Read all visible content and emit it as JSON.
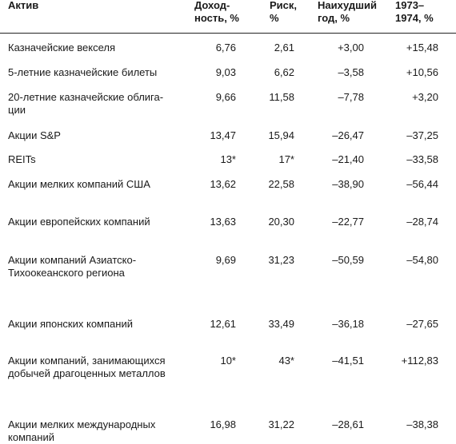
{
  "headers": {
    "asset": "Актив",
    "return": [
      "Доход-",
      "ность, %"
    ],
    "risk": [
      "Риск,",
      "%"
    ],
    "worst": [
      "Наихудший",
      "год, %"
    ],
    "period": [
      "1973–",
      "1974, %"
    ]
  },
  "rows": [
    {
      "name": [
        "Казначейские векселя"
      ],
      "ret": "6,76",
      "risk": "2,61",
      "worst": "+3,00",
      "p7374": "+15,48"
    },
    {
      "name": [
        "5-летние казначейские билеты"
      ],
      "ret": "9,03",
      "risk": "6,62",
      "worst": "–3,58",
      "p7374": "+10,56"
    },
    {
      "name": [
        "20-летние казначейские облига-",
        "ции"
      ],
      "ret": "9,66",
      "risk": "11,58",
      "worst": "–7,78",
      "p7374": "+3,20"
    },
    {
      "name": [
        "Акции S&P"
      ],
      "ret": "13,47",
      "risk": "15,94",
      "worst": "–26,47",
      "p7374": "–37,25"
    },
    {
      "name": [
        "REITs"
      ],
      "ret": "13*",
      "risk": "17*",
      "worst": "–21,40",
      "p7374": "–33,58"
    },
    {
      "name": [
        "Акции мелких компаний США"
      ],
      "ret": "13,62",
      "risk": "22,58",
      "worst": "–38,90",
      "p7374": "–56,44"
    },
    {
      "name": [
        "Акции европейских компаний"
      ],
      "ret": "13,63",
      "risk": "20,30",
      "worst": "–22,77",
      "p7374": "–28,74"
    },
    {
      "name": [
        "Акции компаний Азиатско-",
        "Тихоокеанского региона"
      ],
      "ret": "9,69",
      "risk": "31,23",
      "worst": "–50,59",
      "p7374": "–54,80"
    },
    {
      "name": [
        "Акции японских компаний"
      ],
      "ret": "12,61",
      "risk": "33,49",
      "worst": "–36,18",
      "p7374": "–27,65"
    },
    {
      "name": [
        "Акции компаний, занимающихся",
        "добычей драгоценных металлов"
      ],
      "ret": "10*",
      "risk": "43*",
      "worst": "–41,51",
      "p7374": "+112,83"
    },
    {
      "name": [
        "Акции мелких международных",
        "компаний"
      ],
      "ret": "16,98",
      "risk": "31,22",
      "worst": "–28,61",
      "p7374": "–38,38"
    }
  ]
}
